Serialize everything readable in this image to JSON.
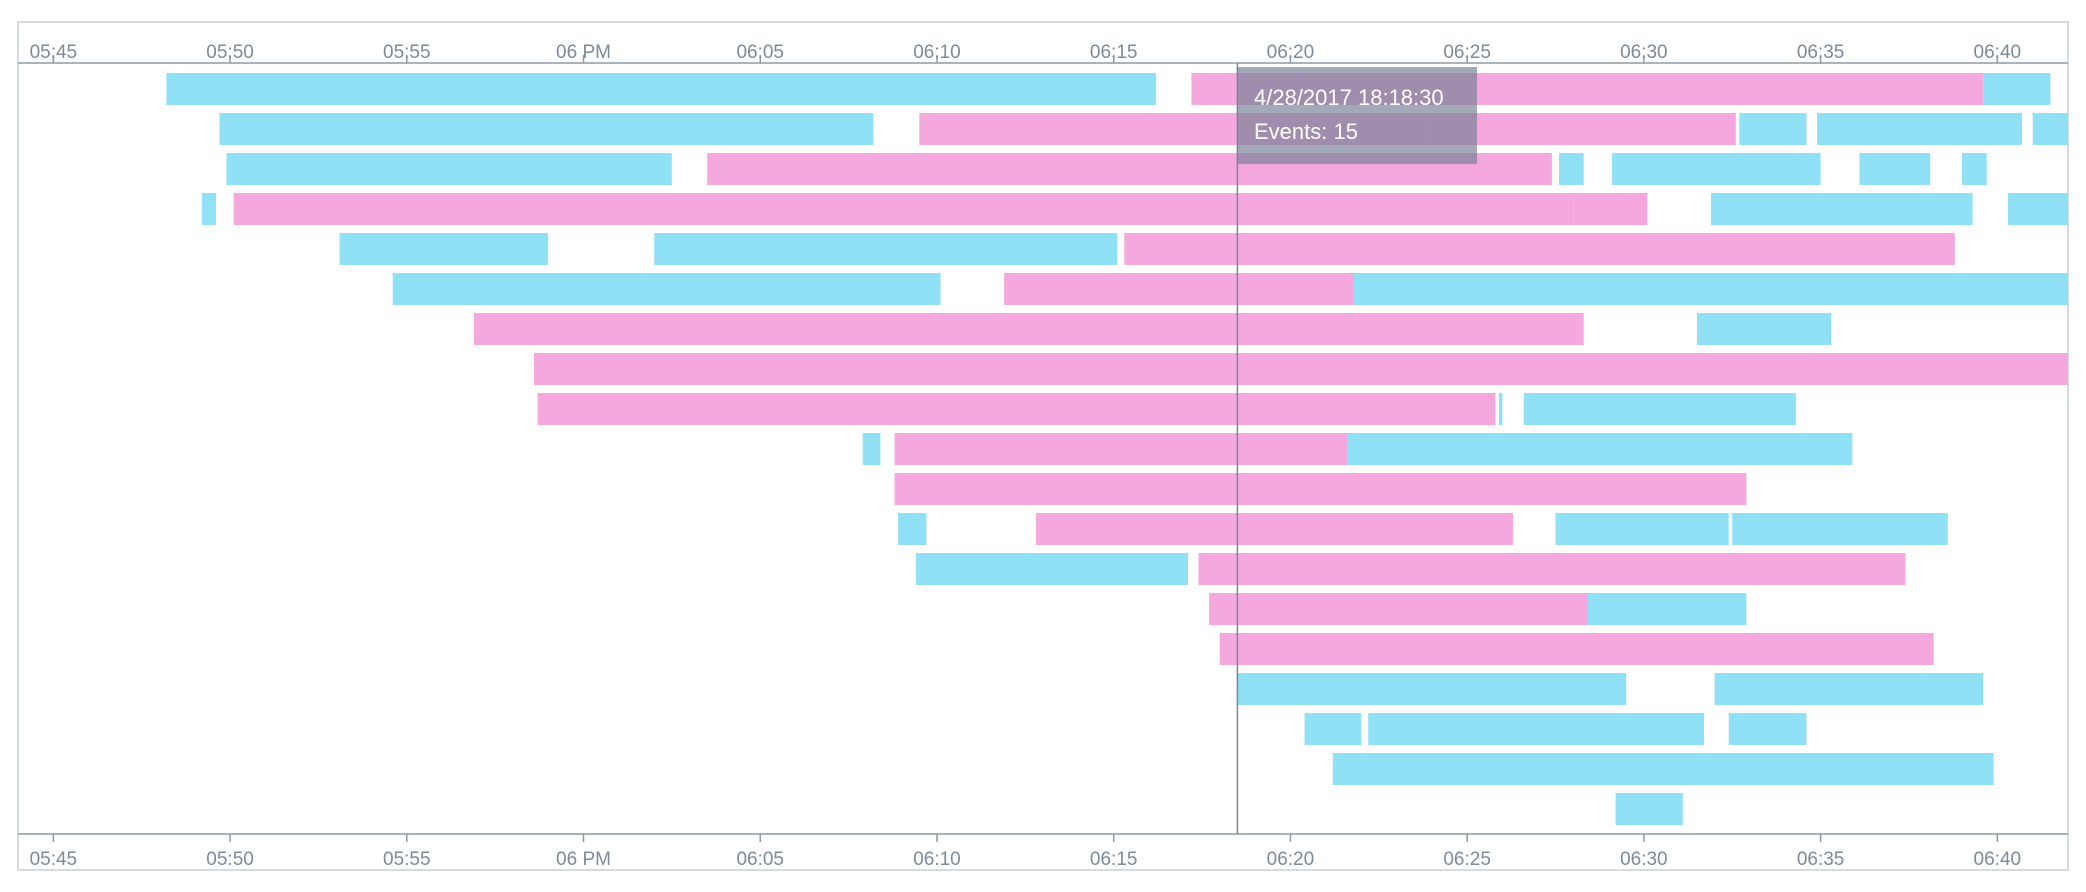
{
  "chart_data": {
    "type": "timeline",
    "title": "",
    "xlabel": "",
    "ylabel": "",
    "xlim": [
      344,
      402
    ],
    "x_tick_values": [
      345,
      350,
      355,
      360,
      365,
      370,
      375,
      380,
      385,
      390,
      395,
      400
    ],
    "x_tick_labels": [
      "05:45",
      "05:50",
      "05:55",
      "06 PM",
      "06:05",
      "06:10",
      "06:15",
      "06:20",
      "06:25",
      "06:30",
      "06:35",
      "06:40"
    ],
    "x_unit": "minutes after 12:00 PM",
    "rows": 20,
    "grid": false,
    "legend": "none",
    "series": [
      {
        "color": "#90e0f6",
        "segments": [
          [
            0,
            348.2,
            376.2
          ],
          [
            0,
            399.6,
            401.5
          ],
          [
            1,
            349.7,
            368.2
          ],
          [
            1,
            392.7,
            394.6
          ],
          [
            1,
            394.9,
            400.7
          ],
          [
            1,
            401.0,
            402.0
          ],
          [
            2,
            349.9,
            362.5
          ],
          [
            2,
            387.6,
            388.3
          ],
          [
            2,
            389.1,
            395.0
          ],
          [
            2,
            396.1,
            398.1
          ],
          [
            2,
            399.0,
            399.7
          ],
          [
            3,
            349.2,
            349.6
          ],
          [
            3,
            391.9,
            399.3
          ],
          [
            3,
            400.3,
            402.0
          ],
          [
            4,
            353.1,
            359.0
          ],
          [
            4,
            362.0,
            375.1
          ],
          [
            5,
            354.6,
            370.1
          ],
          [
            5,
            381.6,
            402.0
          ],
          [
            6,
            391.5,
            395.3
          ],
          [
            8,
            385.9,
            386.0
          ],
          [
            8,
            386.6,
            394.3
          ],
          [
            9,
            367.9,
            368.4
          ],
          [
            9,
            380.9,
            395.9
          ],
          [
            11,
            368.9,
            369.7
          ],
          [
            11,
            387.5,
            392.4
          ],
          [
            11,
            392.5,
            398.6
          ],
          [
            12,
            369.4,
            377.1
          ],
          [
            13,
            386.2,
            392.9
          ],
          [
            15,
            378.5,
            389.5
          ],
          [
            15,
            392.0,
            399.6
          ],
          [
            16,
            380.4,
            382.0
          ],
          [
            16,
            382.2,
            391.7
          ],
          [
            16,
            392.4,
            394.6
          ],
          [
            17,
            381.2,
            399.9
          ],
          [
            18,
            389.2,
            391.1
          ]
        ]
      },
      {
        "color": "#f5a8de",
        "segments": [
          [
            0,
            377.2,
            399.6
          ],
          [
            1,
            369.5,
            384.0
          ],
          [
            1,
            384.0,
            392.6
          ],
          [
            2,
            363.5,
            387.4
          ],
          [
            3,
            350.1,
            388.0
          ],
          [
            3,
            388.0,
            390.1
          ],
          [
            4,
            375.3,
            398.8
          ],
          [
            5,
            371.9,
            381.8
          ],
          [
            6,
            356.9,
            388.3
          ],
          [
            7,
            358.6,
            402.0
          ],
          [
            8,
            358.7,
            385.8
          ],
          [
            9,
            368.8,
            381.6
          ],
          [
            10,
            368.8,
            392.9
          ],
          [
            11,
            372.8,
            386.3
          ],
          [
            12,
            377.4,
            397.4
          ],
          [
            13,
            377.7,
            388.4
          ],
          [
            14,
            378.0,
            398.2
          ]
        ]
      }
    ],
    "cursor": {
      "x": 378.5,
      "label_date": "4/28/2017 18:18:30",
      "events_label": "Events: 15"
    }
  }
}
